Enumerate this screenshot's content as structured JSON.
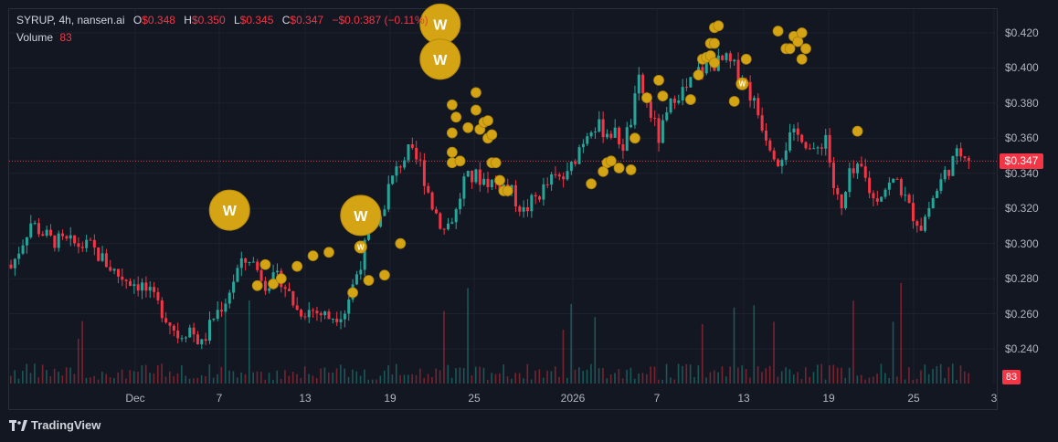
{
  "header": {
    "symbol": "SYRUP, 4h, nansen.ai",
    "open_label": "O",
    "open": "$0.348",
    "high_label": "H",
    "high": "$0.350",
    "low_label": "L",
    "low": "$0.345",
    "close_label": "C",
    "close": "$0.347",
    "change": "−$0.0:387 (−0.11%)",
    "volume_label": "Volume",
    "volume": "83"
  },
  "current_price_tag": "$0.347",
  "volume_tag": "83",
  "brand": "TradingView",
  "colors": {
    "background": "#131722",
    "up": "#26a69a",
    "down": "#f23645",
    "marker": "#d4a414"
  },
  "chart_data": {
    "type": "candlestick",
    "interval": "4h",
    "y_ticks": [
      "$0.420",
      "$0.400",
      "$0.380",
      "$0.360",
      "$0.340",
      "$0.320",
      "$0.300",
      "$0.280",
      "$0.260",
      "$0.240"
    ],
    "y_range": [
      0.228,
      0.428
    ],
    "x_ticks": [
      "Dec",
      "7",
      "13",
      "19",
      "25",
      "2026",
      "7",
      "13",
      "19",
      "25",
      "3"
    ],
    "current_price": 0.347,
    "close_path": [
      [
        0,
        0.286
      ],
      [
        5,
        0.312
      ],
      [
        10,
        0.302
      ],
      [
        15,
        0.3
      ],
      [
        20,
        0.298
      ],
      [
        27,
        0.282
      ],
      [
        33,
        0.276
      ],
      [
        38,
        0.262
      ],
      [
        42,
        0.248
      ],
      [
        45,
        0.252
      ],
      [
        48,
        0.242
      ],
      [
        51,
        0.258
      ],
      [
        54,
        0.268
      ],
      [
        57,
        0.285
      ],
      [
        60,
        0.292
      ],
      [
        64,
        0.278
      ],
      [
        68,
        0.28
      ],
      [
        72,
        0.262
      ],
      [
        76,
        0.262
      ],
      [
        80,
        0.258
      ],
      [
        84,
        0.262
      ],
      [
        88,
        0.29
      ],
      [
        90,
        0.305
      ],
      [
        93,
        0.315
      ],
      [
        95,
        0.332
      ],
      [
        98,
        0.346
      ],
      [
        100,
        0.352
      ],
      [
        103,
        0.345
      ],
      [
        106,
        0.322
      ],
      [
        109,
        0.308
      ],
      [
        112,
        0.318
      ],
      [
        114,
        0.336
      ],
      [
        117,
        0.338
      ],
      [
        121,
        0.335
      ],
      [
        125,
        0.332
      ],
      [
        129,
        0.318
      ],
      [
        132,
        0.326
      ],
      [
        136,
        0.336
      ],
      [
        140,
        0.338
      ],
      [
        143,
        0.355
      ],
      [
        146,
        0.368
      ],
      [
        149,
        0.365
      ],
      [
        152,
        0.362
      ],
      [
        154,
        0.356
      ],
      [
        156,
        0.37
      ],
      [
        158,
        0.392
      ],
      [
        161,
        0.374
      ],
      [
        163,
        0.36
      ],
      [
        165,
        0.372
      ],
      [
        167,
        0.385
      ],
      [
        170,
        0.388
      ],
      [
        173,
        0.398
      ],
      [
        176,
        0.402
      ],
      [
        180,
        0.404
      ],
      [
        184,
        0.396
      ],
      [
        187,
        0.38
      ],
      [
        190,
        0.362
      ],
      [
        193,
        0.348
      ],
      [
        196,
        0.36
      ],
      [
        199,
        0.362
      ],
      [
        202,
        0.35
      ],
      [
        205,
        0.362
      ],
      [
        207,
        0.332
      ],
      [
        209,
        0.318
      ],
      [
        211,
        0.338
      ],
      [
        214,
        0.342
      ],
      [
        217,
        0.325
      ],
      [
        220,
        0.332
      ],
      [
        223,
        0.336
      ],
      [
        226,
        0.32
      ],
      [
        229,
        0.31
      ],
      [
        232,
        0.326
      ],
      [
        235,
        0.34
      ],
      [
        238,
        0.35
      ],
      [
        240,
        0.353
      ],
      [
        241,
        0.347
      ]
    ],
    "markers": [
      {
        "bar": 108,
        "price": 0.425,
        "size": "large"
      },
      {
        "bar": 108,
        "price": 0.405,
        "size": "large"
      },
      {
        "bar": 55,
        "price": 0.319,
        "size": "large"
      },
      {
        "bar": 88,
        "price": 0.316,
        "size": "large"
      },
      {
        "bar": 88,
        "price": 0.298,
        "size": "small-w"
      },
      {
        "bar": 184,
        "price": 0.391,
        "size": "small-w"
      },
      {
        "bar": 64,
        "price": 0.288
      },
      {
        "bar": 62,
        "price": 0.276
      },
      {
        "bar": 66,
        "price": 0.277
      },
      {
        "bar": 68,
        "price": 0.28
      },
      {
        "bar": 72,
        "price": 0.287
      },
      {
        "bar": 76,
        "price": 0.293
      },
      {
        "bar": 80,
        "price": 0.295
      },
      {
        "bar": 86,
        "price": 0.272
      },
      {
        "bar": 90,
        "price": 0.279
      },
      {
        "bar": 94,
        "price": 0.282
      },
      {
        "bar": 98,
        "price": 0.3
      },
      {
        "bar": 111,
        "price": 0.363
      },
      {
        "bar": 111,
        "price": 0.352
      },
      {
        "bar": 111,
        "price": 0.346
      },
      {
        "bar": 112,
        "price": 0.372
      },
      {
        "bar": 111,
        "price": 0.379
      },
      {
        "bar": 113,
        "price": 0.347
      },
      {
        "bar": 115,
        "price": 0.366
      },
      {
        "bar": 117,
        "price": 0.386
      },
      {
        "bar": 117,
        "price": 0.376
      },
      {
        "bar": 118,
        "price": 0.365
      },
      {
        "bar": 119,
        "price": 0.369
      },
      {
        "bar": 120,
        "price": 0.37
      },
      {
        "bar": 120,
        "price": 0.36
      },
      {
        "bar": 121,
        "price": 0.362
      },
      {
        "bar": 121,
        "price": 0.346
      },
      {
        "bar": 122,
        "price": 0.346
      },
      {
        "bar": 123,
        "price": 0.336
      },
      {
        "bar": 124,
        "price": 0.33
      },
      {
        "bar": 125,
        "price": 0.33
      },
      {
        "bar": 146,
        "price": 0.334
      },
      {
        "bar": 149,
        "price": 0.341
      },
      {
        "bar": 150,
        "price": 0.346
      },
      {
        "bar": 151,
        "price": 0.347
      },
      {
        "bar": 153,
        "price": 0.343
      },
      {
        "bar": 156,
        "price": 0.342
      },
      {
        "bar": 157,
        "price": 0.36
      },
      {
        "bar": 160,
        "price": 0.383
      },
      {
        "bar": 163,
        "price": 0.393
      },
      {
        "bar": 164,
        "price": 0.384
      },
      {
        "bar": 171,
        "price": 0.382
      },
      {
        "bar": 173,
        "price": 0.396
      },
      {
        "bar": 174,
        "price": 0.405
      },
      {
        "bar": 175,
        "price": 0.406
      },
      {
        "bar": 176,
        "price": 0.414
      },
      {
        "bar": 177,
        "price": 0.414
      },
      {
        "bar": 177,
        "price": 0.423
      },
      {
        "bar": 178,
        "price": 0.424
      },
      {
        "bar": 176,
        "price": 0.407
      },
      {
        "bar": 177,
        "price": 0.403
      },
      {
        "bar": 182,
        "price": 0.381
      },
      {
        "bar": 185,
        "price": 0.405
      },
      {
        "bar": 193,
        "price": 0.421
      },
      {
        "bar": 195,
        "price": 0.411
      },
      {
        "bar": 196,
        "price": 0.411
      },
      {
        "bar": 197,
        "price": 0.418
      },
      {
        "bar": 198,
        "price": 0.415
      },
      {
        "bar": 199,
        "price": 0.42
      },
      {
        "bar": 200,
        "price": 0.411
      },
      {
        "bar": 199,
        "price": 0.405
      },
      {
        "bar": 213,
        "price": 0.364
      }
    ]
  }
}
